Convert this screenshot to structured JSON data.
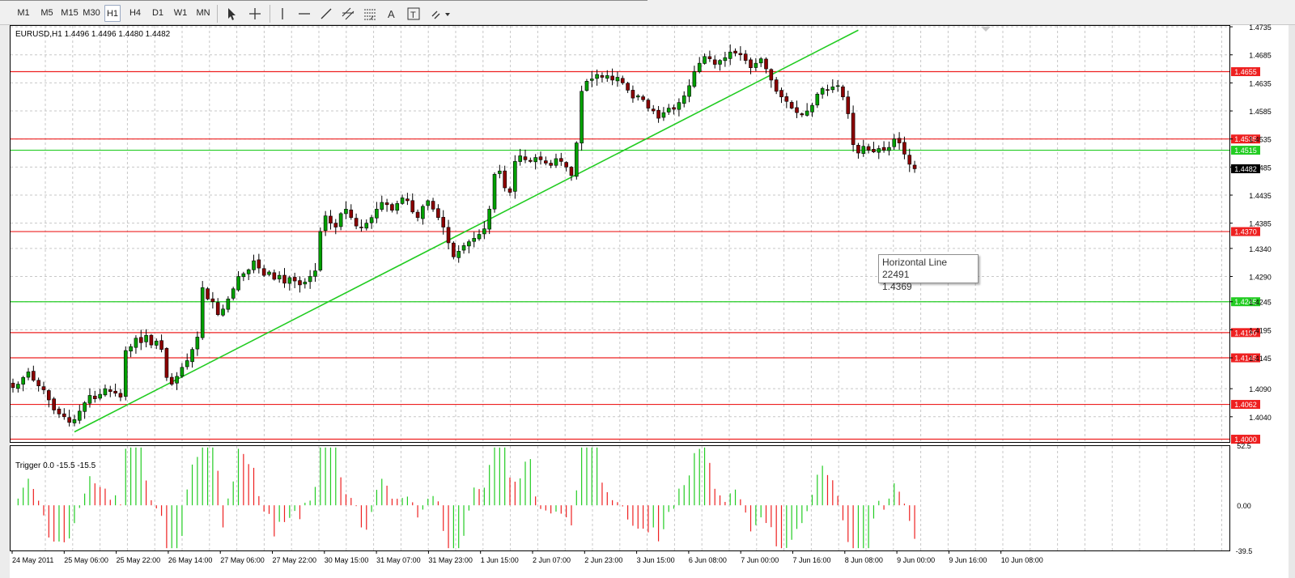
{
  "toolbar": {
    "timeframes": [
      {
        "label": "M1",
        "active": false
      },
      {
        "label": "M5",
        "active": false
      },
      {
        "label": "M15",
        "active": false
      },
      {
        "label": "M30",
        "active": false
      },
      {
        "label": "H1",
        "active": true
      },
      {
        "label": "H4",
        "active": false
      },
      {
        "label": "D1",
        "active": false
      },
      {
        "label": "W1",
        "active": false
      },
      {
        "label": "MN",
        "active": false
      }
    ],
    "tools": [
      "cursor-icon",
      "crosshair-icon",
      "vertical-line-icon",
      "horizontal-line-icon",
      "trendline-icon",
      "equidistant-channel-icon",
      "fibonacci-icon",
      "text-icon",
      "text-label-icon",
      "arrows-icon"
    ]
  },
  "chart_data": {
    "type": "candlestick",
    "symbol_info": "EURUSD,H1  1.4496 1.4496 1.4480 1.4482",
    "current_price": "1.4482",
    "ylim": [
      1.3995,
      1.4738
    ],
    "price_ticks": [
      "1.4735",
      "1.4685",
      "1.4635",
      "1.4585",
      "1.4535",
      "1.4485",
      "1.4435",
      "1.4385",
      "1.4340",
      "1.4290",
      "1.4245",
      "1.4195",
      "1.4145",
      "1.4090",
      "1.4040"
    ],
    "horizontal_lines": [
      {
        "price": 1.4655,
        "label": "1.4655",
        "color": "#ee2020"
      },
      {
        "price": 1.4535,
        "label": "1.4535",
        "color": "#ee2020"
      },
      {
        "price": 1.4515,
        "label": "1.4515",
        "color": "#22cc22"
      },
      {
        "price": 1.437,
        "label": "1.4370",
        "color": "#ee2020"
      },
      {
        "price": 1.4245,
        "label": "1.4245",
        "color": "#22cc22"
      },
      {
        "price": 1.419,
        "label": "1.4190",
        "color": "#ee2020"
      },
      {
        "price": 1.4145,
        "label": "1.4145",
        "color": "#ee2020"
      },
      {
        "price": 1.4062,
        "label": "1.4062",
        "color": "#ee2020"
      },
      {
        "price": 1.4,
        "label": "1.4000",
        "color": "#ee2020"
      }
    ],
    "trendline": {
      "color": "#22cc22",
      "from": {
        "bar": 12,
        "price": 1.4013
      },
      "to": {
        "bar": 165,
        "price": 1.4729
      }
    },
    "x_labels": [
      "24 May 2011",
      "25 May 06:00",
      "25 May 22:00",
      "26 May 14:00",
      "27 May 06:00",
      "27 May 22:00",
      "30 May 15:00",
      "31 May 07:00",
      "31 May 23:00",
      "1 Jun 15:00",
      "2 Jun 07:00",
      "2 Jun 23:00",
      "3 Jun 15:00",
      "6 Jun 08:00",
      "7 Jun 00:00",
      "7 Jun 16:00",
      "8 Jun 08:00",
      "9 Jun 00:00",
      "9 Jun 16:00",
      "10 Jun 08:00"
    ],
    "closes": [
      1.4092,
      1.4098,
      1.411,
      1.412,
      1.4105,
      1.4095,
      1.4088,
      1.407,
      1.4052,
      1.4045,
      1.404,
      1.403,
      1.4035,
      1.405,
      1.4065,
      1.4078,
      1.4072,
      1.408,
      1.409,
      1.4085,
      1.4082,
      1.4075,
      1.4158,
      1.4165,
      1.418,
      1.4172,
      1.4185,
      1.4168,
      1.4175,
      1.416,
      1.411,
      1.4098,
      1.4112,
      1.4128,
      1.414,
      1.416,
      1.4182,
      1.427,
      1.425,
      1.4245,
      1.4222,
      1.4232,
      1.425,
      1.4268,
      1.429,
      1.4295,
      1.4302,
      1.4318,
      1.4305,
      1.4292,
      1.4298,
      1.4285,
      1.4292,
      1.4278,
      1.4288,
      1.4282,
      1.4275,
      1.428,
      1.429,
      1.43,
      1.437,
      1.4398,
      1.4385,
      1.4378,
      1.4402,
      1.441,
      1.4395,
      1.438,
      1.4378,
      1.4385,
      1.4395,
      1.441,
      1.4422,
      1.4418,
      1.4408,
      1.442,
      1.443,
      1.4425,
      1.4405,
      1.4395,
      1.4415,
      1.4425,
      1.441,
      1.4395,
      1.4378,
      1.435,
      1.4325,
      1.4335,
      1.4345,
      1.4352,
      1.4358,
      1.4365,
      1.4375,
      1.441,
      1.4472,
      1.4478,
      1.4448,
      1.444,
      1.4495,
      1.4505,
      1.4498,
      1.4495,
      1.4502,
      1.4498,
      1.4492,
      1.4488,
      1.45,
      1.4495,
      1.4485,
      1.447,
      1.4528,
      1.462,
      1.4638,
      1.4642,
      1.465,
      1.4645,
      1.4648,
      1.464,
      1.4645,
      1.4635,
      1.4622,
      1.4608,
      1.4612,
      1.4605,
      1.459,
      1.4585,
      1.4572,
      1.4582,
      1.459,
      1.4588,
      1.46,
      1.4612,
      1.463,
      1.4655,
      1.467,
      1.4682,
      1.4678,
      1.4668,
      1.4675,
      1.468,
      1.469,
      1.4688,
      1.4685,
      1.4675,
      1.4662,
      1.467,
      1.4678,
      1.466,
      1.464,
      1.462,
      1.461,
      1.4602,
      1.459,
      1.4582,
      1.4578,
      1.4585,
      1.4595,
      1.4615,
      1.4625,
      1.4622,
      1.4628,
      1.463,
      1.461,
      1.458,
      1.4525,
      1.451,
      1.4522,
      1.4515,
      1.4512,
      1.4518,
      1.4515,
      1.452,
      1.4535,
      1.4528,
      1.4508,
      1.449,
      1.4482
    ],
    "indicator": {
      "label": "Trigger 0.0 -15.5 -15.5",
      "ylim": [
        -39.5,
        52.5
      ],
      "ticks": [
        "52.5",
        "0.00",
        "-39.5"
      ],
      "positive_color": "#22cc22",
      "negative_color": "#ee2020"
    }
  },
  "tooltip": {
    "name": "Horizontal Line 22491",
    "value": "1.4369"
  }
}
